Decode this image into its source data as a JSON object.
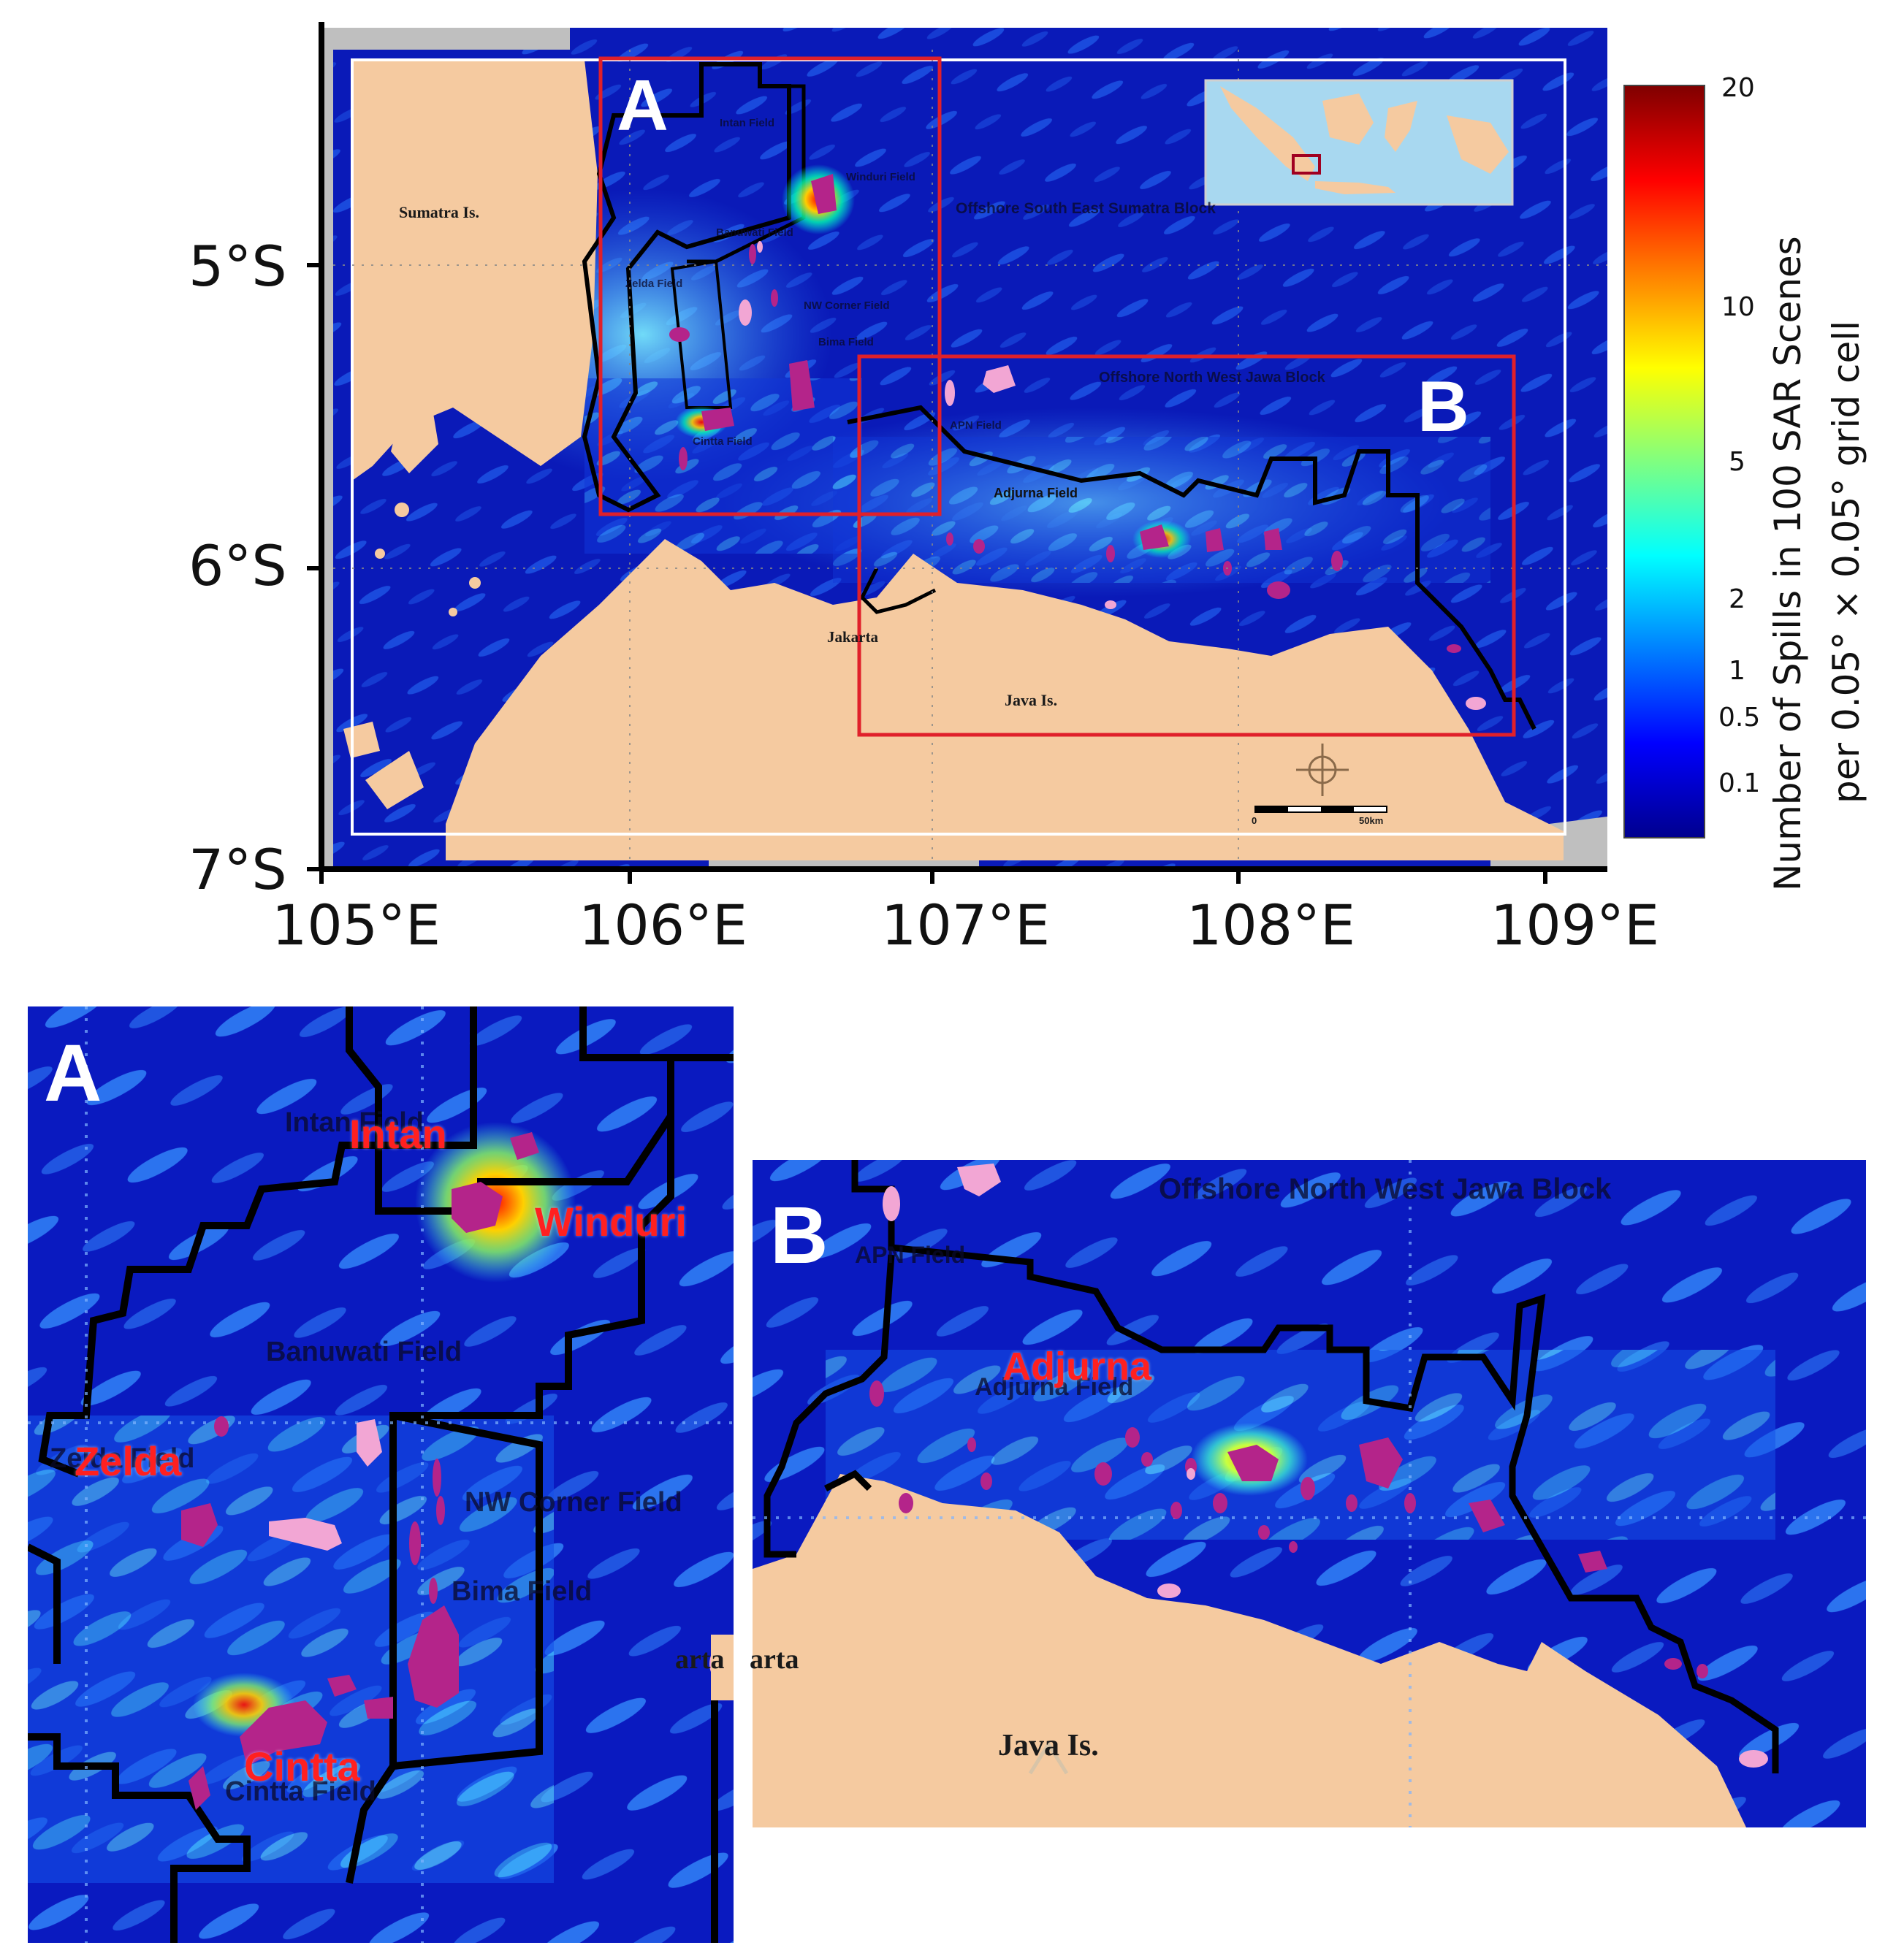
{
  "main_map": {
    "lat_ticks": [
      "5°S",
      "6°S",
      "7°S"
    ],
    "lon_ticks": [
      "105°E",
      "106°E",
      "107°E",
      "108°E",
      "109°E"
    ],
    "place_labels": {
      "sumatra": "Sumatra Is.",
      "jakarta": "Jakarta",
      "java": "Java Is.",
      "adjurna_field": "Adjurna Field",
      "offshore_south_east_sumatra": "Offshore South East Sumatra Block",
      "offshore_north_west_java": "Offshore North West Jawa Block",
      "intan_field": "Intan Field",
      "winduri_field": "Winduri Field",
      "banuwati_field": "Banuwati Field",
      "zelda_field": "Zelda Field",
      "nw_corner_field": "NW Corner Field",
      "bima_field": "Bima Field",
      "cintta_field": "Cintta Field",
      "apn_field": "APN Field"
    },
    "scale_bar": {
      "start": "0",
      "end": "50km"
    },
    "box_a_label": "A",
    "box_b_label": "B"
  },
  "colorbar": {
    "title_line1": "Number of Spills in 100 SAR Scenes",
    "title_line2": "per 0.05° × 0.05° grid cell",
    "ticks": [
      "20",
      "10",
      "5",
      "2",
      "1",
      "0.5",
      "0.1"
    ],
    "colors": [
      "#00008f",
      "#0000ff",
      "#0080ff",
      "#00ffff",
      "#80ff80",
      "#ffff00",
      "#ff8000",
      "#ff0000",
      "#800000"
    ]
  },
  "panel_a": {
    "letter": "A",
    "fields_dark": {
      "intan": "Intan Field",
      "banuwati": "Banuwati Field",
      "zelda": "Zelda Field",
      "nw_corner": "NW Corner Field",
      "bima": "Bima Field",
      "cintta": "Cintta Field",
      "jakarta_partial": "arta"
    },
    "highlight": {
      "intan": "Intan",
      "winduri": "Winduri",
      "zelda": "Zelda",
      "cintta": "Cintta"
    }
  },
  "panel_b": {
    "letter": "B",
    "block_label": "Offshore North West Jawa Block",
    "apn": "APN Field",
    "adjurna_field": "Adjurna Field",
    "java": "Java Is.",
    "jakarta_partial": "arta",
    "highlight": {
      "adjurna": "Adjurna"
    }
  }
}
